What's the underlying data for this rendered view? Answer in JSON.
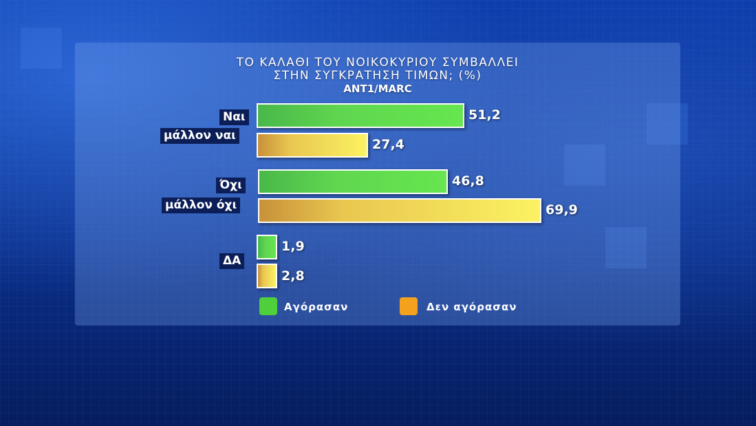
{
  "colors": {
    "green": "#4fcf3a",
    "orange": "#f4a21d",
    "label_bg": "#0b1e57"
  },
  "chart_data": {
    "type": "bar",
    "orientation": "horizontal",
    "title_lines": [
      "ΤΟ ΚΑΛΑΘΙ ΤΟΥ ΝΟΙΚΟΚΥΡΙΟΥ ΣΥΜΒΑΛΛΕΙ",
      "ΣΤΗΝ ΣΥΓΚΡΑΤΗΣΗ ΤΙΜΩΝ; (%)"
    ],
    "source": "ANT1/MARC",
    "categories": [
      {
        "label_lines": [
          "Ναι",
          "μάλλον ναι"
        ]
      },
      {
        "label_lines": [
          "Όχι",
          "μάλλον όχι"
        ]
      },
      {
        "label_lines": [
          "ΔΑ"
        ]
      }
    ],
    "series": [
      {
        "name": "Αγόρασαν",
        "color": "#4fcf3a",
        "values": [
          51.2,
          46.8,
          1.9
        ],
        "labels": [
          "51,2",
          "46,8",
          "1,9"
        ]
      },
      {
        "name": "Δεν αγόρασαν",
        "color": "#f4a21d",
        "values": [
          27.4,
          69.9,
          2.8
        ],
        "labels": [
          "27,4",
          "69,9",
          "2,8"
        ]
      }
    ],
    "legend_position": "bottom"
  }
}
